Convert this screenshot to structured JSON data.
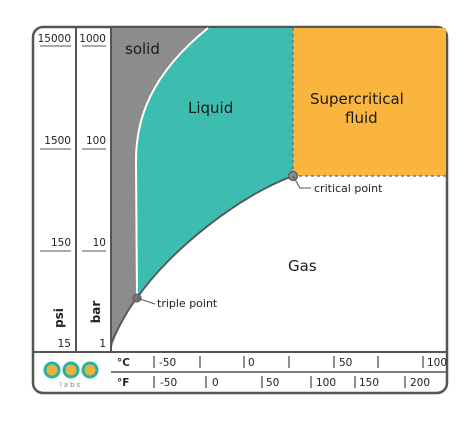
{
  "diagram": {
    "regions": {
      "solid": "solid",
      "liquid": "Liquid",
      "supercritical_line1": "Supercritical",
      "supercritical_line2": "fluid",
      "gas": "Gas"
    },
    "annotations": {
      "triple_point": "triple point",
      "critical_point": "critical point"
    },
    "axes": {
      "psi": {
        "name": "psi",
        "ticks": [
          "15000",
          "1500",
          "150",
          "15"
        ]
      },
      "bar": {
        "name": "bar",
        "ticks": [
          "1000",
          "100",
          "10",
          "1"
        ]
      },
      "celsius": {
        "unit": "°C",
        "ticks": [
          "-50",
          "0",
          "50",
          "100"
        ]
      },
      "fahrenheit": {
        "unit": "°F",
        "ticks": [
          "-50",
          "0",
          "50",
          "100",
          "150",
          "200"
        ]
      }
    },
    "logo": {
      "text": "labs",
      "icon": "three-rings-logo-icon"
    },
    "colors": {
      "solid": "#8c8c8c",
      "liquid": "#3dbdb0",
      "supercritical": "#f9b53d",
      "gas": "#ffffff",
      "frame": "#555555",
      "logo_teal": "#2ab0a8",
      "logo_gold": "#e8b53a"
    }
  }
}
